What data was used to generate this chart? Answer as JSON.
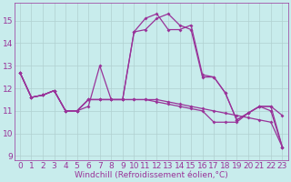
{
  "xlabel": "Windchill (Refroidissement éolien,°C)",
  "xlim": [
    -0.5,
    23.5
  ],
  "ylim": [
    8.8,
    15.8
  ],
  "yticks": [
    9,
    10,
    11,
    12,
    13,
    14,
    15
  ],
  "xticks": [
    0,
    1,
    2,
    3,
    4,
    5,
    6,
    7,
    8,
    9,
    10,
    11,
    12,
    13,
    14,
    15,
    16,
    17,
    18,
    19,
    20,
    21,
    22,
    23
  ],
  "bg_color": "#c8ecec",
  "line_color": "#993399",
  "grid_color": "#b0d0d0",
  "curves": [
    [
      12.7,
      11.6,
      11.7,
      11.9,
      11.0,
      11.0,
      11.2,
      13.0,
      11.5,
      11.5,
      14.5,
      15.1,
      15.3,
      14.6,
      14.6,
      14.8,
      12.6,
      12.5,
      11.8,
      10.6,
      10.9,
      11.2,
      11.2,
      10.8
    ],
    [
      12.7,
      11.6,
      11.7,
      11.9,
      11.0,
      11.0,
      11.5,
      11.5,
      11.5,
      11.5,
      14.5,
      14.6,
      15.1,
      15.3,
      14.8,
      14.6,
      12.5,
      12.5,
      11.8,
      10.6,
      10.9,
      11.2,
      11.2,
      9.4
    ],
    [
      12.7,
      11.6,
      11.7,
      11.9,
      11.0,
      11.0,
      11.5,
      11.5,
      11.5,
      11.5,
      11.5,
      11.5,
      11.5,
      11.4,
      11.3,
      11.2,
      11.1,
      11.0,
      10.9,
      10.8,
      10.7,
      10.6,
      10.5,
      9.4
    ],
    [
      12.7,
      11.6,
      11.7,
      11.9,
      11.0,
      11.0,
      11.5,
      11.5,
      11.5,
      11.5,
      11.5,
      11.5,
      11.4,
      11.3,
      11.2,
      11.1,
      11.0,
      10.5,
      10.5,
      10.5,
      10.9,
      11.2,
      11.0,
      9.4
    ]
  ]
}
